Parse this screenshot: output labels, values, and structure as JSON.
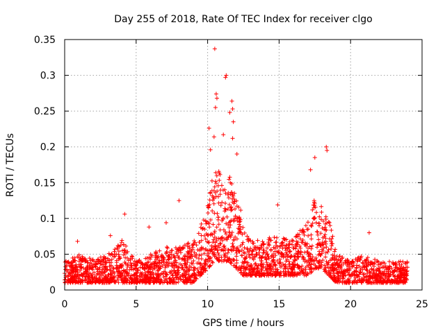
{
  "chart_data": {
    "type": "scatter",
    "title": "Day 255 of 2018, Rate Of TEC Index for receiver clgo",
    "xlabel": "GPS time / hours",
    "ylabel": "ROTI / TECUs",
    "xlim": [
      0,
      25
    ],
    "ylim": [
      0,
      0.35
    ],
    "xticks": [
      0,
      5,
      10,
      15,
      20,
      25
    ],
    "xtick_labels": [
      "0",
      "5",
      "10",
      "15",
      "20",
      "25"
    ],
    "yticks": [
      0,
      0.05,
      0.1,
      0.15,
      0.2,
      0.25,
      0.3,
      0.35
    ],
    "ytick_labels": [
      "0",
      "0.05",
      "0.1",
      "0.15",
      "0.2",
      "0.25",
      "0.3",
      "0.35"
    ],
    "grid": true,
    "marker": "+",
    "color": "#ff0000",
    "series": [
      {
        "name": "ROTI",
        "envelope": {
          "hours": [
            0,
            1,
            2,
            3,
            4,
            5,
            6,
            7,
            8,
            9,
            9.5,
            10,
            10.5,
            11,
            11.5,
            12,
            12.5,
            13,
            14,
            15,
            16,
            17,
            17.5,
            18,
            18.5,
            19,
            20,
            21,
            22,
            23,
            24
          ],
          "typical_max": [
            0.04,
            0.05,
            0.045,
            0.05,
            0.07,
            0.04,
            0.05,
            0.06,
            0.06,
            0.07,
            0.09,
            0.12,
            0.18,
            0.16,
            0.16,
            0.14,
            0.1,
            0.07,
            0.07,
            0.08,
            0.07,
            0.1,
            0.13,
            0.12,
            0.1,
            0.05,
            0.04,
            0.05,
            0.04,
            0.04,
            0.04
          ],
          "typical_min": [
            0.01,
            0.01,
            0.01,
            0.01,
            0.01,
            0.01,
            0.01,
            0.01,
            0.01,
            0.01,
            0.02,
            0.03,
            0.04,
            0.04,
            0.04,
            0.03,
            0.02,
            0.02,
            0.02,
            0.02,
            0.02,
            0.02,
            0.03,
            0.03,
            0.02,
            0.01,
            0.01,
            0.01,
            0.01,
            0.01,
            0.01
          ]
        },
        "peaks": [
          {
            "x": 10.5,
            "y": 0.337
          },
          {
            "x": 11.3,
            "y": 0.3
          },
          {
            "x": 11.25,
            "y": 0.297
          },
          {
            "x": 10.6,
            "y": 0.274
          },
          {
            "x": 10.65,
            "y": 0.268
          },
          {
            "x": 11.7,
            "y": 0.264
          },
          {
            "x": 11.75,
            "y": 0.253
          },
          {
            "x": 10.55,
            "y": 0.255
          },
          {
            "x": 11.55,
            "y": 0.248
          },
          {
            "x": 11.8,
            "y": 0.235
          },
          {
            "x": 10.1,
            "y": 0.226
          },
          {
            "x": 10.45,
            "y": 0.214
          },
          {
            "x": 11.1,
            "y": 0.217
          },
          {
            "x": 11.75,
            "y": 0.212
          },
          {
            "x": 10.2,
            "y": 0.196
          },
          {
            "x": 18.3,
            "y": 0.2
          },
          {
            "x": 18.35,
            "y": 0.195
          },
          {
            "x": 12.05,
            "y": 0.19
          },
          {
            "x": 17.5,
            "y": 0.185
          },
          {
            "x": 17.2,
            "y": 0.168
          },
          {
            "x": 8.0,
            "y": 0.125
          },
          {
            "x": 4.2,
            "y": 0.106
          },
          {
            "x": 14.9,
            "y": 0.119
          },
          {
            "x": 7.1,
            "y": 0.094
          },
          {
            "x": 5.9,
            "y": 0.088
          },
          {
            "x": 21.3,
            "y": 0.08
          },
          {
            "x": 0.9,
            "y": 0.068
          },
          {
            "x": 3.2,
            "y": 0.076
          }
        ]
      }
    ]
  }
}
